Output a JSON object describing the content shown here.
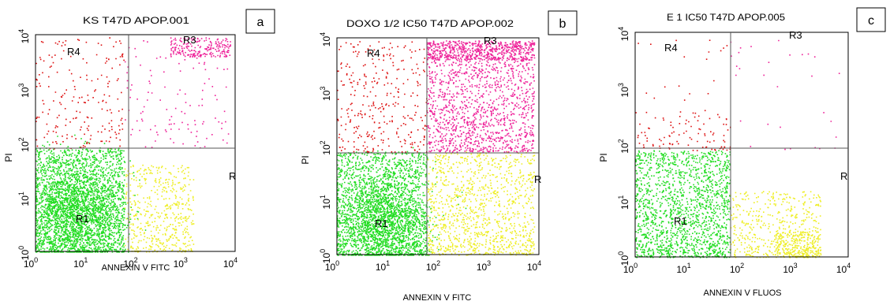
{
  "figure": {
    "colors": {
      "R1": "#22dd22",
      "R2": "#eeee22",
      "R3": "#ee2299",
      "R4": "#dd1111",
      "gate": "#555555",
      "frame": "#000000"
    }
  },
  "chart_data": [
    {
      "type": "scatter",
      "panel_label": "a",
      "title": "KS T47D APOP.001",
      "xlabel": "ANNEXIN V FITC",
      "ylabel": "PI",
      "xscale": "log",
      "yscale": "log",
      "xlim": [
        1,
        10000
      ],
      "ylim": [
        1,
        10000
      ],
      "x_ticks": [
        "10",
        "10",
        "10",
        "10",
        "10"
      ],
      "x_tick_exponents": [
        "0",
        "1",
        "2",
        "3",
        "4"
      ],
      "y_ticks": [
        "10",
        "10",
        "10",
        "10",
        "10"
      ],
      "y_tick_exponents": [
        "0",
        "1",
        "2",
        "3",
        "4"
      ],
      "gate_x": 60,
      "gate_y": 80,
      "region_labels": {
        "R1": "R1",
        "R3": "R3",
        "R4": "R4",
        "R2": "R"
      },
      "density": {
        "R1": 0.8,
        "R2": 0.12,
        "R3": 0.04,
        "R4": 0.04
      },
      "populations": [
        {
          "region": "R1",
          "shape": "cluster",
          "x_center": 6,
          "y_center": 6,
          "spread": 0.45,
          "count": 1800
        },
        {
          "region": "R1",
          "shape": "band",
          "x_range": [
            1,
            60
          ],
          "y_range": [
            1,
            80
          ],
          "count": 1700
        },
        {
          "region": "R2",
          "shape": "band",
          "x_range": [
            60,
            1500
          ],
          "y_range": [
            1,
            40
          ],
          "count": 500
        },
        {
          "region": "R3",
          "shape": "band",
          "x_range": [
            500,
            8000
          ],
          "y_range": [
            4000,
            9000
          ],
          "count": 220
        },
        {
          "region": "R3",
          "shape": "band",
          "x_range": [
            60,
            8000
          ],
          "y_range": [
            80,
            8000
          ],
          "count": 120
        },
        {
          "region": "R4",
          "shape": "band",
          "x_range": [
            1,
            60
          ],
          "y_range": [
            80,
            9000
          ],
          "count": 200
        }
      ]
    },
    {
      "type": "scatter",
      "panel_label": "b",
      "title": "DOXO 1/2 IC50 T47D APOP.002",
      "xlabel": "ANNEXIN V FITC",
      "ylabel": "PI",
      "xscale": "log",
      "yscale": "log",
      "xlim": [
        1,
        10000
      ],
      "ylim": [
        1,
        10000
      ],
      "x_ticks": [
        "10",
        "10",
        "10",
        "10",
        "10"
      ],
      "x_tick_exponents": [
        "0",
        "1",
        "2",
        "3",
        "4"
      ],
      "y_ticks": [
        "10",
        "10",
        "10",
        "10",
        "10"
      ],
      "y_tick_exponents": [
        "0",
        "1",
        "2",
        "3",
        "4"
      ],
      "gate_x": 60,
      "gate_y": 80,
      "region_labels": {
        "R1": "R1",
        "R3": "R3",
        "R4": "R4",
        "R2": "R"
      },
      "density": {
        "R1": 0.45,
        "R2": 0.2,
        "R3": 0.3,
        "R4": 0.05
      },
      "populations": [
        {
          "region": "R1",
          "shape": "cluster",
          "x_center": 8,
          "y_center": 5,
          "spread": 0.45,
          "count": 1500
        },
        {
          "region": "R1",
          "shape": "band",
          "x_range": [
            1,
            60
          ],
          "y_range": [
            1,
            80
          ],
          "count": 1500
        },
        {
          "region": "R2",
          "shape": "band",
          "x_range": [
            60,
            8000
          ],
          "y_range": [
            1,
            80
          ],
          "count": 1100
        },
        {
          "region": "R3",
          "shape": "band",
          "x_range": [
            60,
            8000
          ],
          "y_range": [
            80,
            9000
          ],
          "count": 1400
        },
        {
          "region": "R3",
          "shape": "band",
          "x_range": [
            60,
            8000
          ],
          "y_range": [
            4000,
            9000
          ],
          "count": 500
        },
        {
          "region": "R4",
          "shape": "band",
          "x_range": [
            1,
            60
          ],
          "y_range": [
            80,
            9000
          ],
          "count": 320
        }
      ]
    },
    {
      "type": "scatter",
      "panel_label": "c",
      "title": "E 1 IC50 T47D APOP.005",
      "xlabel": "ANNEXIN V FLUOS",
      "ylabel": "PI",
      "xscale": "log",
      "yscale": "log",
      "xlim": [
        1,
        10000
      ],
      "ylim": [
        1,
        10000
      ],
      "x_ticks": [
        "10",
        "10",
        "10",
        "10",
        "10"
      ],
      "x_tick_exponents": [
        "0",
        "1",
        "2",
        "3",
        "4"
      ],
      "y_ticks": [
        "10",
        "10",
        "10",
        "10",
        "10"
      ],
      "y_tick_exponents": [
        "0",
        "1",
        "2",
        "3",
        "4"
      ],
      "gate_x": 60,
      "gate_y": 80,
      "region_labels": {
        "R1": "R1",
        "R3": "R3",
        "R4": "R4",
        "R2": "R"
      },
      "density": {
        "R1": 0.75,
        "R2": 0.18,
        "R3": 0.02,
        "R4": 0.05
      },
      "populations": [
        {
          "region": "R1",
          "shape": "band",
          "x_range": [
            1,
            60
          ],
          "y_range": [
            1,
            80
          ],
          "count": 1600
        },
        {
          "region": "R2",
          "shape": "band",
          "x_range": [
            60,
            3000
          ],
          "y_range": [
            1,
            15
          ],
          "count": 450
        },
        {
          "region": "R2",
          "shape": "band",
          "x_range": [
            400,
            3000
          ],
          "y_range": [
            1,
            3
          ],
          "count": 250
        },
        {
          "region": "R3",
          "shape": "band",
          "x_range": [
            60,
            9000
          ],
          "y_range": [
            80,
            9000
          ],
          "count": 30
        },
        {
          "region": "R4",
          "shape": "band",
          "x_range": [
            1,
            60
          ],
          "y_range": [
            80,
            400
          ],
          "count": 90
        },
        {
          "region": "R4",
          "shape": "band",
          "x_range": [
            1,
            60
          ],
          "y_range": [
            80,
            9000
          ],
          "count": 30
        }
      ]
    }
  ]
}
